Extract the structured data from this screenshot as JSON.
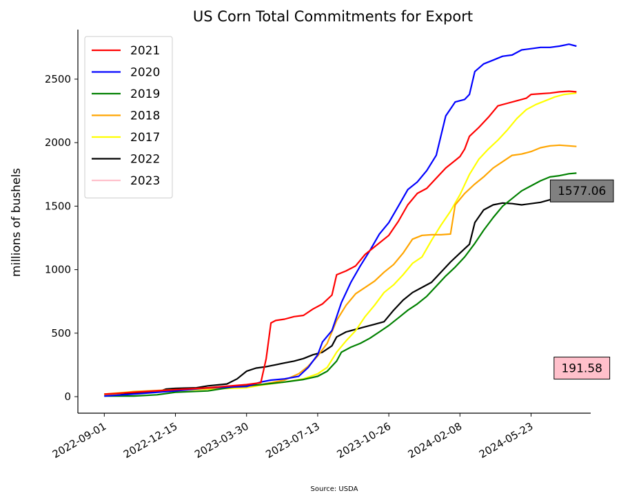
{
  "chart_data": {
    "type": "line",
    "title": "US Corn Total Commitments for Export",
    "ylabel": "millions of bushels",
    "xlabel": "",
    "source": "Source: USDA",
    "ylim": [
      -130,
      2890
    ],
    "yticks": [
      0,
      500,
      1000,
      1500,
      2000,
      2500
    ],
    "xlim": [
      "2022-07-24",
      "2024-08-19"
    ],
    "xticks": [
      "2022-09-01",
      "2022-12-15",
      "2023-03-30",
      "2023-07-13",
      "2023-10-26",
      "2024-02-08",
      "2024-05-23"
    ],
    "legend_position": "top-left",
    "grid": false,
    "annotations": [
      {
        "text": "1577.06",
        "x": "2024-08-06",
        "y": 1620,
        "bg": "#808080"
      },
      {
        "text": "191.58",
        "x": "2024-08-06",
        "y": 225,
        "bg": "#ffc0cb"
      }
    ],
    "series": [
      {
        "name": "2021",
        "color": "#ff0000",
        "points": [
          [
            "2022-09-01",
            20
          ],
          [
            "2022-10-15",
            35
          ],
          [
            "2022-12-15",
            55
          ],
          [
            "2023-02-01",
            70
          ],
          [
            "2023-03-30",
            95
          ],
          [
            "2023-04-20",
            110
          ],
          [
            "2023-04-28",
            300
          ],
          [
            "2023-05-05",
            580
          ],
          [
            "2023-05-12",
            600
          ],
          [
            "2023-05-25",
            610
          ],
          [
            "2023-06-08",
            630
          ],
          [
            "2023-06-22",
            640
          ],
          [
            "2023-07-06",
            690
          ],
          [
            "2023-07-20",
            730
          ],
          [
            "2023-08-03",
            800
          ],
          [
            "2023-08-10",
            960
          ],
          [
            "2023-08-24",
            990
          ],
          [
            "2023-09-07",
            1030
          ],
          [
            "2023-09-21",
            1120
          ],
          [
            "2023-10-05",
            1180
          ],
          [
            "2023-10-26",
            1270
          ],
          [
            "2023-11-09",
            1380
          ],
          [
            "2023-11-23",
            1510
          ],
          [
            "2023-12-07",
            1600
          ],
          [
            "2023-12-21",
            1640
          ],
          [
            "2024-01-04",
            1720
          ],
          [
            "2024-01-18",
            1800
          ],
          [
            "2024-02-01",
            1860
          ],
          [
            "2024-02-08",
            1890
          ],
          [
            "2024-02-15",
            1950
          ],
          [
            "2024-02-22",
            2050
          ],
          [
            "2024-03-07",
            2120
          ],
          [
            "2024-03-21",
            2200
          ],
          [
            "2024-04-04",
            2290
          ],
          [
            "2024-04-18",
            2310
          ],
          [
            "2024-05-02",
            2330
          ],
          [
            "2024-05-16",
            2350
          ],
          [
            "2024-05-23",
            2380
          ],
          [
            "2024-06-06",
            2385
          ],
          [
            "2024-06-20",
            2390
          ],
          [
            "2024-07-04",
            2400
          ],
          [
            "2024-07-18",
            2405
          ],
          [
            "2024-07-29",
            2400
          ]
        ]
      },
      {
        "name": "2020",
        "color": "#0000ff",
        "points": [
          [
            "2022-09-01",
            5
          ],
          [
            "2022-10-15",
            20
          ],
          [
            "2022-12-15",
            45
          ],
          [
            "2023-02-01",
            70
          ],
          [
            "2023-03-30",
            80
          ],
          [
            "2023-04-20",
            115
          ],
          [
            "2023-05-05",
            130
          ],
          [
            "2023-05-25",
            140
          ],
          [
            "2023-06-15",
            160
          ],
          [
            "2023-06-29",
            230
          ],
          [
            "2023-07-13",
            330
          ],
          [
            "2023-07-20",
            430
          ],
          [
            "2023-08-03",
            520
          ],
          [
            "2023-08-17",
            740
          ],
          [
            "2023-08-31",
            900
          ],
          [
            "2023-09-14",
            1030
          ],
          [
            "2023-09-28",
            1150
          ],
          [
            "2023-10-12",
            1280
          ],
          [
            "2023-10-26",
            1370
          ],
          [
            "2023-11-09",
            1500
          ],
          [
            "2023-11-23",
            1630
          ],
          [
            "2023-12-07",
            1690
          ],
          [
            "2023-12-21",
            1780
          ],
          [
            "2024-01-04",
            1900
          ],
          [
            "2024-01-18",
            2210
          ],
          [
            "2024-02-01",
            2320
          ],
          [
            "2024-02-15",
            2340
          ],
          [
            "2024-02-22",
            2380
          ],
          [
            "2024-03-01",
            2560
          ],
          [
            "2024-03-14",
            2620
          ],
          [
            "2024-03-28",
            2650
          ],
          [
            "2024-04-11",
            2680
          ],
          [
            "2024-04-25",
            2690
          ],
          [
            "2024-05-09",
            2730
          ],
          [
            "2024-05-23",
            2740
          ],
          [
            "2024-06-06",
            2750
          ],
          [
            "2024-06-20",
            2750
          ],
          [
            "2024-07-04",
            2760
          ],
          [
            "2024-07-18",
            2775
          ],
          [
            "2024-07-29",
            2760
          ]
        ]
      },
      {
        "name": "2019",
        "color": "#008000",
        "points": [
          [
            "2022-09-01",
            5
          ],
          [
            "2022-10-15",
            5
          ],
          [
            "2022-11-18",
            15
          ],
          [
            "2022-12-15",
            35
          ],
          [
            "2023-02-01",
            45
          ],
          [
            "2023-03-09",
            75
          ],
          [
            "2023-03-30",
            85
          ],
          [
            "2023-04-20",
            95
          ],
          [
            "2023-05-25",
            115
          ],
          [
            "2023-06-22",
            135
          ],
          [
            "2023-07-13",
            160
          ],
          [
            "2023-07-27",
            200
          ],
          [
            "2023-08-10",
            280
          ],
          [
            "2023-08-17",
            350
          ],
          [
            "2023-08-31",
            390
          ],
          [
            "2023-09-14",
            420
          ],
          [
            "2023-09-28",
            460
          ],
          [
            "2023-10-12",
            510
          ],
          [
            "2023-10-26",
            560
          ],
          [
            "2023-11-09",
            620
          ],
          [
            "2023-11-23",
            680
          ],
          [
            "2023-12-07",
            730
          ],
          [
            "2023-12-21",
            790
          ],
          [
            "2024-01-04",
            870
          ],
          [
            "2024-01-18",
            950
          ],
          [
            "2024-02-01",
            1020
          ],
          [
            "2024-02-15",
            1100
          ],
          [
            "2024-02-29",
            1200
          ],
          [
            "2024-03-14",
            1310
          ],
          [
            "2024-03-28",
            1410
          ],
          [
            "2024-04-11",
            1500
          ],
          [
            "2024-04-25",
            1560
          ],
          [
            "2024-05-09",
            1620
          ],
          [
            "2024-05-23",
            1660
          ],
          [
            "2024-06-06",
            1700
          ],
          [
            "2024-06-20",
            1730
          ],
          [
            "2024-07-04",
            1740
          ],
          [
            "2024-07-18",
            1755
          ],
          [
            "2024-07-29",
            1760
          ]
        ]
      },
      {
        "name": "2018",
        "color": "#ffa500",
        "points": [
          [
            "2022-09-01",
            10
          ],
          [
            "2022-10-15",
            40
          ],
          [
            "2022-12-15",
            55
          ],
          [
            "2023-02-01",
            65
          ],
          [
            "2023-03-30",
            80
          ],
          [
            "2023-04-20",
            95
          ],
          [
            "2023-05-25",
            130
          ],
          [
            "2023-06-15",
            180
          ],
          [
            "2023-06-29",
            240
          ],
          [
            "2023-07-13",
            320
          ],
          [
            "2023-07-27",
            420
          ],
          [
            "2023-08-10",
            600
          ],
          [
            "2023-08-24",
            720
          ],
          [
            "2023-09-07",
            810
          ],
          [
            "2023-09-21",
            860
          ],
          [
            "2023-10-05",
            910
          ],
          [
            "2023-10-19",
            980
          ],
          [
            "2023-11-02",
            1040
          ],
          [
            "2023-11-16",
            1130
          ],
          [
            "2023-11-30",
            1240
          ],
          [
            "2023-12-14",
            1270
          ],
          [
            "2023-12-28",
            1275
          ],
          [
            "2024-01-11",
            1275
          ],
          [
            "2024-01-25",
            1280
          ],
          [
            "2024-02-01",
            1510
          ],
          [
            "2024-02-15",
            1600
          ],
          [
            "2024-02-29",
            1670
          ],
          [
            "2024-03-14",
            1730
          ],
          [
            "2024-03-28",
            1800
          ],
          [
            "2024-04-11",
            1850
          ],
          [
            "2024-04-25",
            1900
          ],
          [
            "2024-05-09",
            1910
          ],
          [
            "2024-05-23",
            1930
          ],
          [
            "2024-06-06",
            1960
          ],
          [
            "2024-06-20",
            1975
          ],
          [
            "2024-07-04",
            1980
          ],
          [
            "2024-07-18",
            1975
          ],
          [
            "2024-07-29",
            1970
          ]
        ]
      },
      {
        "name": "2017",
        "color": "#ffff00",
        "points": [
          [
            "2022-09-01",
            20
          ],
          [
            "2022-10-15",
            40
          ],
          [
            "2022-12-15",
            50
          ],
          [
            "2023-02-01",
            60
          ],
          [
            "2023-03-30",
            70
          ],
          [
            "2023-04-20",
            90
          ],
          [
            "2023-05-25",
            115
          ],
          [
            "2023-06-22",
            140
          ],
          [
            "2023-07-13",
            180
          ],
          [
            "2023-07-27",
            230
          ],
          [
            "2023-08-10",
            350
          ],
          [
            "2023-08-24",
            440
          ],
          [
            "2023-09-07",
            520
          ],
          [
            "2023-09-21",
            630
          ],
          [
            "2023-10-05",
            720
          ],
          [
            "2023-10-19",
            820
          ],
          [
            "2023-11-02",
            880
          ],
          [
            "2023-11-16",
            960
          ],
          [
            "2023-11-30",
            1050
          ],
          [
            "2023-12-14",
            1100
          ],
          [
            "2023-12-28",
            1230
          ],
          [
            "2024-01-11",
            1350
          ],
          [
            "2024-01-25",
            1460
          ],
          [
            "2024-02-08",
            1590
          ],
          [
            "2024-02-22",
            1750
          ],
          [
            "2024-03-07",
            1870
          ],
          [
            "2024-03-21",
            1950
          ],
          [
            "2024-04-04",
            2020
          ],
          [
            "2024-04-18",
            2100
          ],
          [
            "2024-05-02",
            2190
          ],
          [
            "2024-05-16",
            2260
          ],
          [
            "2024-05-30",
            2300
          ],
          [
            "2024-06-13",
            2330
          ],
          [
            "2024-06-27",
            2360
          ],
          [
            "2024-07-11",
            2380
          ],
          [
            "2024-07-29",
            2390
          ]
        ]
      },
      {
        "name": "2022",
        "color": "#000000",
        "points": [
          [
            "2022-09-01",
            20
          ],
          [
            "2022-10-15",
            25
          ],
          [
            "2022-11-20",
            40
          ],
          [
            "2022-12-01",
            60
          ],
          [
            "2022-12-15",
            65
          ],
          [
            "2023-01-15",
            70
          ],
          [
            "2023-02-01",
            85
          ],
          [
            "2023-03-01",
            100
          ],
          [
            "2023-03-16",
            140
          ],
          [
            "2023-03-30",
            200
          ],
          [
            "2023-04-13",
            225
          ],
          [
            "2023-04-27",
            235
          ],
          [
            "2023-05-11",
            250
          ],
          [
            "2023-05-25",
            265
          ],
          [
            "2023-06-08",
            280
          ],
          [
            "2023-06-22",
            300
          ],
          [
            "2023-07-06",
            330
          ],
          [
            "2023-07-20",
            350
          ],
          [
            "2023-08-03",
            400
          ],
          [
            "2023-08-10",
            470
          ],
          [
            "2023-08-24",
            510
          ],
          [
            "2023-09-07",
            530
          ],
          [
            "2023-09-21",
            550
          ],
          [
            "2023-10-05",
            570
          ],
          [
            "2023-10-19",
            590
          ],
          [
            "2023-11-02",
            680
          ],
          [
            "2023-11-16",
            760
          ],
          [
            "2023-11-30",
            820
          ],
          [
            "2023-12-14",
            860
          ],
          [
            "2023-12-28",
            900
          ],
          [
            "2024-01-11",
            980
          ],
          [
            "2024-01-25",
            1060
          ],
          [
            "2024-02-08",
            1130
          ],
          [
            "2024-02-22",
            1200
          ],
          [
            "2024-03-01",
            1370
          ],
          [
            "2024-03-14",
            1470
          ],
          [
            "2024-03-28",
            1510
          ],
          [
            "2024-04-11",
            1525
          ],
          [
            "2024-04-25",
            1520
          ],
          [
            "2024-05-09",
            1510
          ],
          [
            "2024-05-23",
            1520
          ],
          [
            "2024-06-06",
            1530
          ],
          [
            "2024-06-20",
            1550
          ],
          [
            "2024-07-04",
            1577
          ]
        ]
      },
      {
        "name": "2023",
        "color": "#ffc0cb",
        "points": [
          [
            "2022-09-01",
            15
          ],
          [
            "2022-10-15",
            25
          ],
          [
            "2022-12-15",
            45
          ],
          [
            "2023-02-01",
            60
          ],
          [
            "2023-03-30",
            75
          ],
          [
            "2023-04-20",
            90
          ],
          [
            "2023-05-11",
            105
          ],
          [
            "2023-06-01",
            120
          ],
          [
            "2023-06-22",
            140
          ],
          [
            "2023-07-06",
            165
          ],
          [
            "2023-07-13",
            175
          ],
          [
            "2023-07-17",
            192
          ]
        ]
      }
    ]
  }
}
